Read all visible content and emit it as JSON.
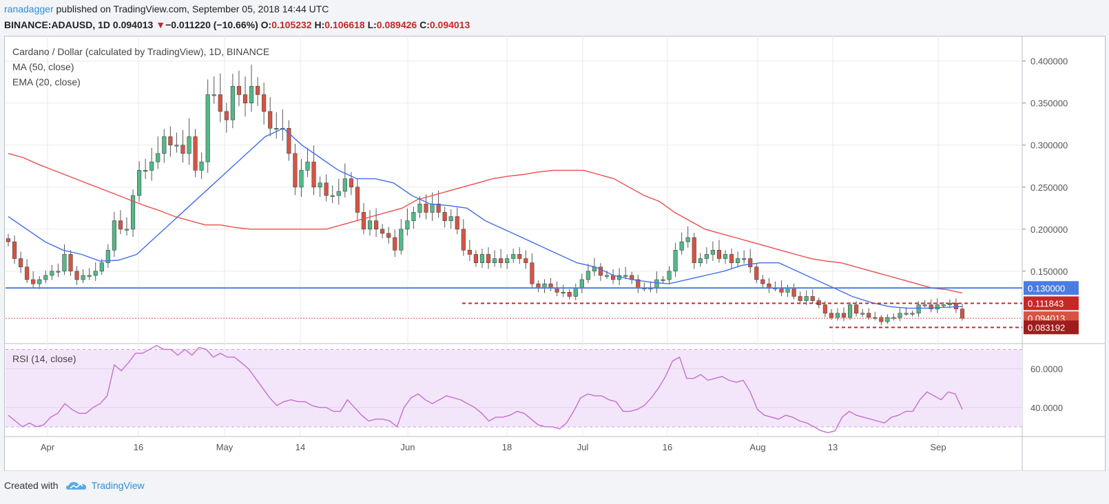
{
  "header": {
    "publisher": "ranadagger",
    "published_text": "published on TradingView.com, September 05, 2018 14:44 UTC",
    "symbol": "BINANCE:ADAUSD, 1D",
    "last": "0.094013",
    "change_arrow": "▼",
    "change": "−0.011220 (−10.66%)",
    "o_label": "O:",
    "o_value": "0.105232",
    "h_label": "H:",
    "h_value": "0.106618",
    "l_label": "L:",
    "l_value": "0.089426",
    "c_label": "C:",
    "c_value": "0.094013"
  },
  "legend": {
    "title": "Cardano / Dollar (calculated by TradingView), 1D, BINANCE",
    "ma": "MA (50, close)",
    "ema": "EMA (20, close)",
    "rsi": "RSI (14, close)"
  },
  "footer": {
    "created_with": "Created with",
    "brand": "TradingView"
  },
  "colors": {
    "up": "#53b987",
    "down": "#d75442",
    "ma": "#ee4b4b",
    "ema": "#3f6ee8",
    "rsi": "#c26fd1",
    "rsi_band": "#f4e6fa",
    "support": "#4a7de2",
    "level": "#c62828",
    "grid": "#e8eaee"
  },
  "chart_data": [
    {
      "type": "candlestick",
      "title": "Cardano / Dollar (calculated by TradingView), 1D, BINANCE",
      "x_ticks": [
        "Apr",
        "16",
        "May",
        "14",
        "Jun",
        "18",
        "Jul",
        "16",
        "Aug",
        "13",
        "Sep"
      ],
      "y_ticks": [
        "0.400000",
        "0.350000",
        "0.300000",
        "0.250000",
        "0.200000",
        "0.150000"
      ],
      "ylim": [
        0.068,
        0.43
      ],
      "grid": true,
      "close": [
        0.185,
        0.165,
        0.155,
        0.14,
        0.135,
        0.14,
        0.145,
        0.15,
        0.15,
        0.17,
        0.15,
        0.14,
        0.145,
        0.145,
        0.15,
        0.16,
        0.175,
        0.21,
        0.2,
        0.2,
        0.24,
        0.27,
        0.27,
        0.28,
        0.29,
        0.31,
        0.3,
        0.3,
        0.29,
        0.31,
        0.27,
        0.28,
        0.36,
        0.36,
        0.34,
        0.33,
        0.37,
        0.36,
        0.35,
        0.37,
        0.36,
        0.34,
        0.32,
        0.32,
        0.32,
        0.29,
        0.25,
        0.27,
        0.28,
        0.25,
        0.255,
        0.24,
        0.24,
        0.245,
        0.26,
        0.25,
        0.22,
        0.2,
        0.21,
        0.2,
        0.195,
        0.19,
        0.175,
        0.2,
        0.21,
        0.22,
        0.23,
        0.22,
        0.23,
        0.22,
        0.21,
        0.215,
        0.2,
        0.175,
        0.17,
        0.16,
        0.17,
        0.16,
        0.165,
        0.16,
        0.165,
        0.17,
        0.165,
        0.16,
        0.135,
        0.13,
        0.135,
        0.13,
        0.125,
        0.125,
        0.12,
        0.13,
        0.14,
        0.15,
        0.155,
        0.145,
        0.145,
        0.14,
        0.145,
        0.145,
        0.14,
        0.13,
        0.13,
        0.13,
        0.14,
        0.14,
        0.15,
        0.175,
        0.185,
        0.19,
        0.16,
        0.165,
        0.17,
        0.175,
        0.165,
        0.17,
        0.16,
        0.165,
        0.165,
        0.155,
        0.14,
        0.135,
        0.13,
        0.13,
        0.125,
        0.13,
        0.12,
        0.115,
        0.12,
        0.115,
        0.11,
        0.1,
        0.095,
        0.1,
        0.095,
        0.11,
        0.1,
        0.1,
        0.095,
        0.095,
        0.09,
        0.095,
        0.095,
        0.1,
        0.1,
        0.1,
        0.11,
        0.11,
        0.105,
        0.11,
        0.11,
        0.112,
        0.105,
        0.094
      ],
      "ma_50_close": [
        0.29,
        0.285,
        0.277,
        0.27,
        0.263,
        0.256,
        0.249,
        0.242,
        0.235,
        0.228,
        0.222,
        0.215,
        0.21,
        0.205,
        0.205,
        0.202,
        0.2,
        0.2,
        0.2,
        0.2,
        0.2,
        0.2,
        0.205,
        0.21,
        0.215,
        0.22,
        0.225,
        0.235,
        0.24,
        0.245,
        0.25,
        0.255,
        0.26,
        0.263,
        0.265,
        0.268,
        0.27,
        0.27,
        0.27,
        0.265,
        0.26,
        0.25,
        0.24,
        0.233,
        0.22,
        0.21,
        0.2,
        0.195,
        0.19,
        0.185,
        0.18,
        0.175,
        0.17,
        0.165,
        0.162,
        0.16,
        0.155,
        0.15,
        0.145,
        0.14,
        0.135,
        0.13,
        0.128,
        0.124
      ],
      "ema_20_close": [
        0.215,
        0.2,
        0.185,
        0.175,
        0.17,
        0.162,
        0.163,
        0.17,
        0.19,
        0.21,
        0.23,
        0.25,
        0.27,
        0.29,
        0.31,
        0.32,
        0.3,
        0.285,
        0.27,
        0.26,
        0.26,
        0.255,
        0.24,
        0.23,
        0.228,
        0.225,
        0.21,
        0.2,
        0.19,
        0.18,
        0.17,
        0.16,
        0.155,
        0.145,
        0.14,
        0.137,
        0.135,
        0.14,
        0.145,
        0.15,
        0.157,
        0.16,
        0.16,
        0.15,
        0.14,
        0.13,
        0.12,
        0.113,
        0.108,
        0.106,
        0.106,
        0.107,
        0.108
      ],
      "levels": [
        0.13,
        0.111843,
        0.094013,
        0.083192
      ],
      "level_labels": [
        "0.130000",
        "0.111843",
        "0.094013",
        "0.083192"
      ]
    },
    {
      "type": "line",
      "title": "RSI (14, close)",
      "y_ticks": [
        "60.0000",
        "40.0000"
      ],
      "ylim": [
        25,
        73
      ],
      "band": [
        30,
        70
      ],
      "values": [
        36,
        33,
        30,
        32,
        30,
        31,
        35,
        37,
        42,
        39,
        37,
        37,
        40,
        42,
        46,
        62,
        59,
        63,
        68,
        68,
        70,
        72,
        70,
        70,
        67,
        70,
        67,
        71,
        70,
        66,
        68,
        66,
        66,
        63,
        60,
        55,
        50,
        45,
        41,
        43,
        44,
        43,
        43,
        41,
        40,
        40,
        38,
        38,
        44,
        40,
        36,
        33,
        34,
        34,
        33,
        30,
        40,
        45,
        47,
        44,
        42,
        44,
        46,
        45,
        44,
        42,
        40,
        37,
        33,
        35,
        35,
        36,
        38,
        37,
        34,
        31,
        30,
        30,
        29,
        32,
        38,
        45,
        47,
        46,
        46,
        44,
        43,
        38,
        38,
        39,
        41,
        45,
        50,
        56,
        64,
        66,
        55,
        55,
        57,
        54,
        55,
        56,
        54,
        53,
        54,
        48,
        39,
        36,
        35,
        34,
        36,
        35,
        33,
        32,
        30,
        28,
        27,
        28,
        35,
        38,
        36,
        35,
        34,
        33,
        32,
        35,
        36,
        38,
        38,
        44,
        48,
        46,
        44,
        48,
        47,
        39
      ]
    }
  ]
}
